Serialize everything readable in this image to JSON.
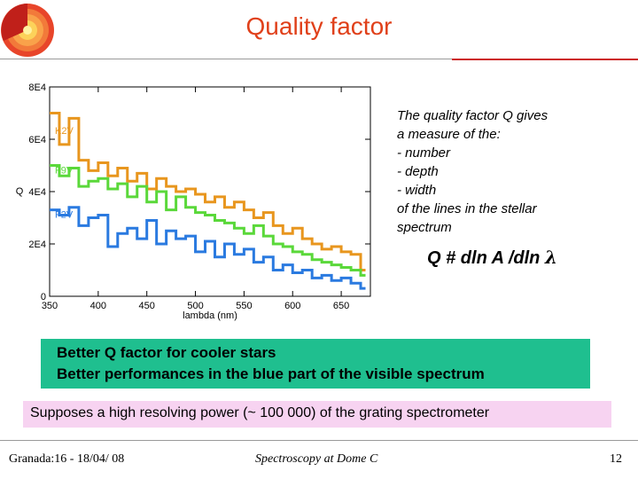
{
  "slide": {
    "title": "Quality factor",
    "description_lines": [
      "The quality factor Q gives",
      "a measure of the:",
      "- number",
      "- depth",
      "- width",
      "of the lines in the stellar",
      "spectrum"
    ],
    "formula_text": "Q # dln A /dln ",
    "formula_symbol": "λ",
    "highlight_lines": [
      "Better Q factor for cooler stars",
      "Better performances in the blue part of the visible spectrum"
    ],
    "note": "Supposes a high resolving power (~ 100 000)  of the grating spectrometer",
    "footer_left": "Granada:16 - 18/04/ 08",
    "footer_center": "Spectroscopy at Dome C",
    "footer_right": "12",
    "colors": {
      "title": "#e0401a",
      "green_box": "#1fbf8f",
      "pink_box": "#f7d3f1"
    },
    "logo_icon": "sun-cross-section-icon"
  },
  "chart_data": {
    "type": "line",
    "xlabel": "lambda (nm)",
    "ylabel": "Q",
    "xlim": [
      350,
      680
    ],
    "ylim": [
      0,
      80000
    ],
    "xticks": [
      350,
      400,
      450,
      500,
      550,
      600,
      650
    ],
    "yticks": [
      0,
      20000,
      40000,
      60000,
      80000
    ],
    "ytick_labels": [
      "0",
      "2E4",
      "4E4",
      "6E4",
      "8E4"
    ],
    "grid": false,
    "series": [
      {
        "name": "K2V",
        "color": "#e8961e",
        "x": [
          350,
          360,
          370,
          380,
          390,
          400,
          410,
          420,
          430,
          440,
          450,
          460,
          470,
          480,
          490,
          500,
          510,
          520,
          530,
          540,
          550,
          560,
          570,
          580,
          590,
          600,
          610,
          620,
          630,
          640,
          650,
          660,
          670,
          675
        ],
        "y": [
          70000,
          58000,
          68000,
          52000,
          48000,
          51000,
          46000,
          49000,
          44000,
          47000,
          41000,
          45000,
          42000,
          40000,
          41000,
          39000,
          36000,
          38000,
          34000,
          36000,
          33000,
          30000,
          32000,
          27000,
          24000,
          26000,
          22000,
          20000,
          18000,
          19000,
          17000,
          16000,
          10000,
          10000
        ]
      },
      {
        "name": "F9V",
        "color": "#5ad83a",
        "x": [
          350,
          360,
          370,
          380,
          390,
          400,
          410,
          420,
          430,
          440,
          450,
          460,
          470,
          480,
          490,
          500,
          510,
          520,
          530,
          540,
          550,
          560,
          570,
          580,
          590,
          600,
          610,
          620,
          630,
          640,
          650,
          660,
          670,
          675
        ],
        "y": [
          50000,
          46000,
          49000,
          42000,
          44000,
          45000,
          41000,
          43000,
          38000,
          42000,
          36000,
          40000,
          33000,
          38000,
          34000,
          32000,
          31000,
          29000,
          28000,
          26000,
          24000,
          27000,
          23000,
          20000,
          19000,
          17000,
          16000,
          14000,
          13000,
          12000,
          11000,
          10000,
          8000,
          8000
        ]
      },
      {
        "name": "F2V",
        "color": "#2a7ae0",
        "x": [
          350,
          360,
          370,
          380,
          390,
          400,
          410,
          420,
          430,
          440,
          450,
          460,
          470,
          480,
          490,
          500,
          510,
          520,
          530,
          540,
          550,
          560,
          570,
          580,
          590,
          600,
          610,
          620,
          630,
          640,
          650,
          660,
          670,
          675
        ],
        "y": [
          33000,
          31000,
          34000,
          27000,
          30000,
          31000,
          19000,
          24000,
          26000,
          22000,
          29000,
          20000,
          25000,
          22000,
          23000,
          17000,
          21000,
          15000,
          20000,
          16000,
          18000,
          13000,
          15000,
          10000,
          12000,
          9000,
          10000,
          7000,
          8000,
          6000,
          7000,
          5000,
          3000,
          3000
        ]
      }
    ]
  }
}
